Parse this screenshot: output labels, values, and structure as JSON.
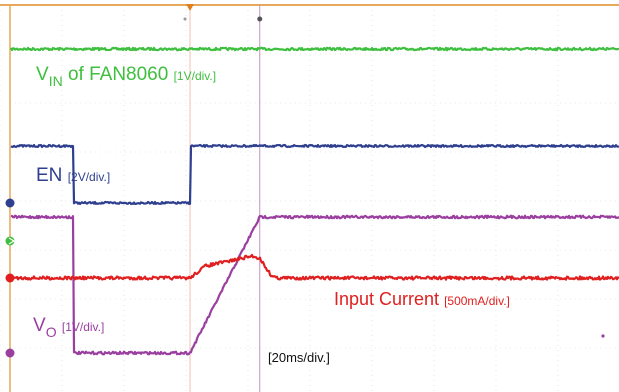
{
  "chart_data": {
    "type": "line",
    "x_unit": "ms",
    "timebase_label": "[20ms/div.]",
    "x_range_ms": [
      -37.5,
      162.5
    ],
    "trigger_ms": 0,
    "cursor_ms": 22.5,
    "series": [
      {
        "id": "vin",
        "name_main": "V",
        "name_sub": "IN",
        "name_rest": " of FAN8060 ",
        "scale_label": "[1V/div.]",
        "color": "#3fbf3f",
        "points_ms": [
          [
            -37.5,
            1
          ],
          [
            162.5,
            1
          ]
        ],
        "noise": 1.2
      },
      {
        "id": "en",
        "name_main": "EN ",
        "name_sub": "",
        "name_rest": "",
        "scale_label": "[2V/div.]",
        "color": "#2e3f8f",
        "points_ms": [
          [
            -37.5,
            0
          ],
          [
            0,
            0
          ],
          [
            0,
            1
          ],
          [
            162.5,
            1
          ]
        ],
        "noise": 1.0
      },
      {
        "id": "vo",
        "name_main": "V",
        "name_sub": "O",
        "name_rest": " ",
        "scale_label": "[1V/div.]",
        "color": "#9a3fa0",
        "points_ms": [
          [
            -37.5,
            0
          ],
          [
            0,
            0
          ],
          [
            22.5,
            1
          ],
          [
            162.5,
            1
          ]
        ],
        "noise": 1.3
      },
      {
        "id": "iin",
        "name_main": "Input Current ",
        "name_sub": "",
        "name_rest": "",
        "scale_label": "[500mA/div.]",
        "color": "#e02020",
        "points_ms": [
          [
            -37.5,
            0
          ],
          [
            0,
            0
          ],
          [
            5,
            0.55
          ],
          [
            12,
            0.75
          ],
          [
            20,
            1
          ],
          [
            22.5,
            0.9
          ],
          [
            26,
            0.15
          ],
          [
            28,
            0
          ],
          [
            162.5,
            0
          ]
        ],
        "noise": 1.6
      }
    ]
  },
  "colors": {
    "graticule_border": "#e6a85a",
    "grid": "#d6d6d6",
    "trigger_line": "#f0c0b0",
    "cursor_line": "#c890c8"
  }
}
